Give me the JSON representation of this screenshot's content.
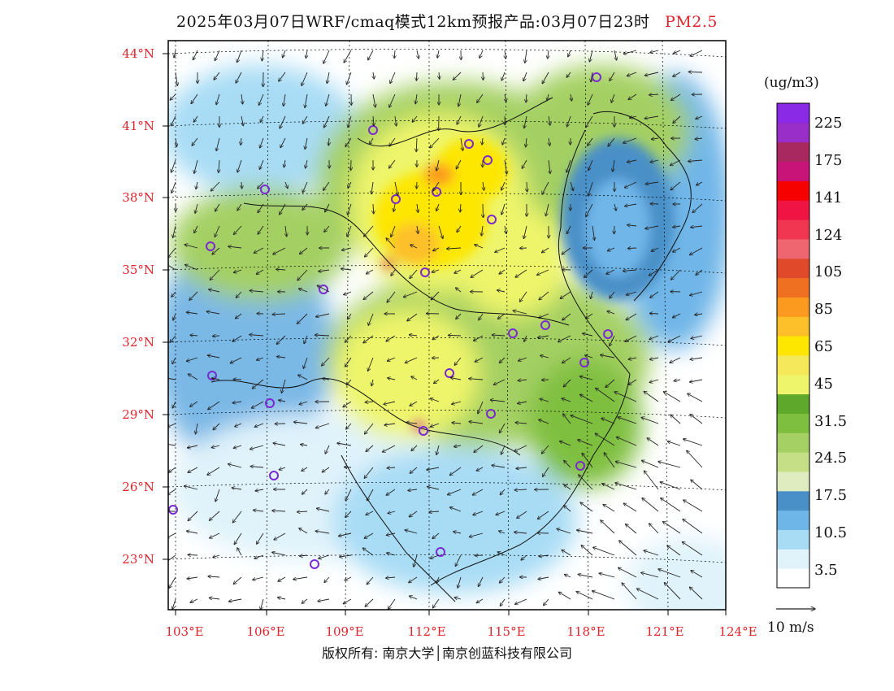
{
  "header": {
    "title": "2025年03月07日WRF/cmaq模式12km预报产品:03月07日23时",
    "pollutant": "PM2.5"
  },
  "map": {
    "lat_labels": [
      "44°N",
      "41°N",
      "38°N",
      "35°N",
      "32°N",
      "29°N",
      "26°N",
      "23°N"
    ],
    "lon_labels": [
      "103°E",
      "106°E",
      "109°E",
      "112°E",
      "115°E",
      "118°E",
      "121°E",
      "124°E"
    ]
  },
  "colorbar": {
    "unit": "(ug/m3)",
    "colors": [
      "#ffffff",
      "#e0f3fb",
      "#a8dcf5",
      "#6fb6e8",
      "#4a90c8",
      "#dfecc0",
      "#c4df86",
      "#a4d064",
      "#7fbf3f",
      "#5ea82c",
      "#eef56a",
      "#f5e85a",
      "#fde600",
      "#fdbf2a",
      "#fb9a1e",
      "#f07022",
      "#e04a2a",
      "#f06670",
      "#f03650",
      "#f01444",
      "#f60000",
      "#c81478",
      "#a82860",
      "#9a2ec8",
      "#8a2ae6"
    ],
    "labels": [
      "3.5",
      "10.5",
      "17.5",
      "24.5",
      "31.5",
      "45",
      "65",
      "85",
      "105",
      "124",
      "141",
      "175",
      "225"
    ]
  },
  "wind_scale": {
    "label": "10 m/s"
  },
  "footer": {
    "copyright": "版权所有: 南京大学│南京创蓝科技有限公司"
  }
}
